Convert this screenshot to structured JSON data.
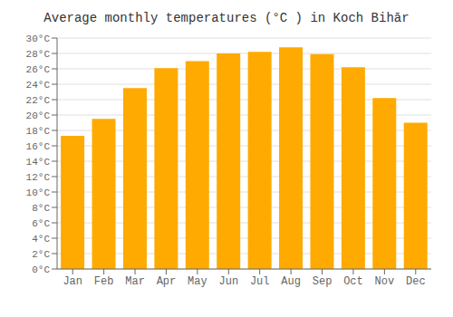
{
  "chart_data": {
    "type": "bar",
    "title": "Average monthly temperatures (°C ) in Koch Bihār",
    "categories": [
      "Jan",
      "Feb",
      "Mar",
      "Apr",
      "May",
      "Jun",
      "Jul",
      "Aug",
      "Sep",
      "Oct",
      "Nov",
      "Dec"
    ],
    "values": [
      17.3,
      19.5,
      23.5,
      26.1,
      27.0,
      28.0,
      28.2,
      28.8,
      27.9,
      26.2,
      22.2,
      19.0
    ],
    "color": "#FFAA00",
    "ylim": [
      0,
      30
    ],
    "yticks": [
      {
        "value": 0,
        "label": "0°C"
      },
      {
        "value": 2,
        "label": "2°C"
      },
      {
        "value": 4,
        "label": "4°C"
      },
      {
        "value": 6,
        "label": "6°C"
      },
      {
        "value": 8,
        "label": "8°C"
      },
      {
        "value": 10,
        "label": "10°C"
      },
      {
        "value": 12,
        "label": "12°C"
      },
      {
        "value": 14,
        "label": "14°C"
      },
      {
        "value": 16,
        "label": "16°C"
      },
      {
        "value": 18,
        "label": "18°C"
      },
      {
        "value": 20,
        "label": "20°C"
      },
      {
        "value": 22,
        "label": "22°C"
      },
      {
        "value": 24,
        "label": "24°C"
      },
      {
        "value": 26,
        "label": "26°C"
      },
      {
        "value": 28,
        "label": "28°C"
      },
      {
        "value": 30,
        "label": "30°C"
      }
    ],
    "grid": true
  }
}
